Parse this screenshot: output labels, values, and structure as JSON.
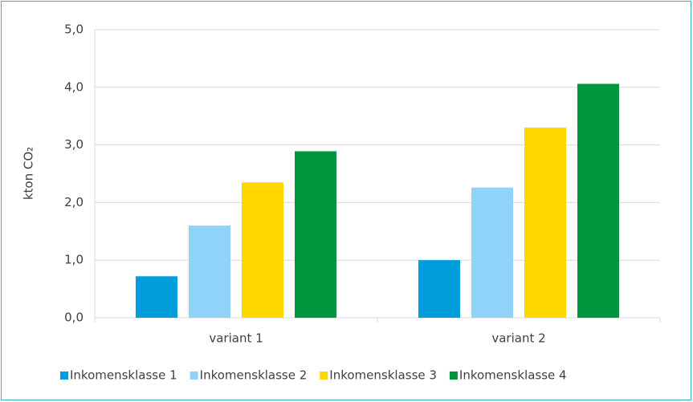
{
  "chart_data": {
    "type": "bar",
    "ylabel": "kton CO₂",
    "categories": [
      "variant 1",
      "variant 2"
    ],
    "series": [
      {
        "name": "Inkomensklasse 1",
        "color": "#009ddb",
        "values": [
          0.72,
          1.0
        ]
      },
      {
        "name": "Inkomensklasse 2",
        "color": "#8fd3fb",
        "values": [
          1.6,
          2.26
        ]
      },
      {
        "name": "Inkomensklasse 3",
        "color": "#ffd800",
        "values": [
          2.35,
          3.3
        ]
      },
      {
        "name": "Inkomensklasse 4",
        "color": "#00953f",
        "values": [
          2.89,
          4.06
        ]
      }
    ],
    "ylim": [
      0,
      5
    ],
    "yticks": [
      {
        "value": 0,
        "label": "0,0"
      },
      {
        "value": 1,
        "label": "1,0"
      },
      {
        "value": 2,
        "label": "2,0"
      },
      {
        "value": 3,
        "label": "3,0"
      },
      {
        "value": 4,
        "label": "4,0"
      },
      {
        "value": 5,
        "label": "5,0"
      }
    ],
    "grid": true,
    "legend": "bottom"
  }
}
